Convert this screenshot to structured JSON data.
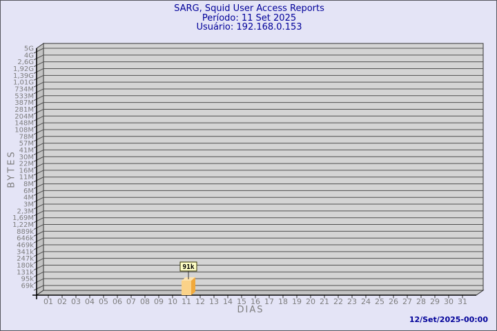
{
  "window": {
    "background": "#e4e4f6",
    "border_color": "#55555e"
  },
  "header": {
    "title": "SARG, Squid User Access Reports",
    "period": "Período: 11 Set 2025",
    "user": "Usuário: 192.168.0.153",
    "text_color": "#000099"
  },
  "footer": {
    "timestamp": "12/Set/2025-00:00",
    "text_color": "#000099"
  },
  "chart_data": {
    "type": "bar",
    "title": "SARG, Squid User Access Reports",
    "subtitle": [
      "Período: 11 Set 2025",
      "Usuário: 192.168.0.153"
    ],
    "xlabel": "DIAS",
    "ylabel": "BYTES",
    "y_scale": "log",
    "grid": true,
    "style": "3d",
    "x_tick_labels": [
      "01",
      "02",
      "03",
      "04",
      "05",
      "06",
      "07",
      "08",
      "09",
      "10",
      "11",
      "12",
      "13",
      "14",
      "15",
      "16",
      "17",
      "18",
      "19",
      "20",
      "21",
      "22",
      "23",
      "24",
      "25",
      "26",
      "27",
      "28",
      "29",
      "30",
      "31"
    ],
    "y_tick_labels": [
      "5G",
      "4G",
      "2,6G",
      "1,92G",
      "1,39G",
      "1,01G",
      "734M",
      "533M",
      "387M",
      "281M",
      "204M",
      "148M",
      "108M",
      "78M",
      "57M",
      "41M",
      "30M",
      "22M",
      "16M",
      "11M",
      "8M",
      "6M",
      "4M",
      "3M",
      "2,3M",
      "1,69M",
      "1,22M",
      "889k",
      "646k",
      "469k",
      "341k",
      "247k",
      "180k",
      "131k",
      "95k",
      "69k"
    ],
    "y_tick_values": [
      5000000000,
      4000000000,
      2600000000,
      1920000000,
      1390000000,
      1010000000,
      734000000,
      533000000,
      387000000,
      281000000,
      204000000,
      148000000,
      108000000,
      78000000,
      57000000,
      41000000,
      30000000,
      22000000,
      16000000,
      11000000,
      8000000,
      6000000,
      4000000,
      3000000,
      2300000,
      1690000,
      1220000,
      889000,
      646000,
      469000,
      341000,
      247000,
      180000,
      131000,
      95000,
      69000
    ],
    "bars": [
      {
        "x": "11",
        "value": 91000,
        "label": "91k"
      }
    ],
    "colors": {
      "plot_face": "#d4d4d4",
      "plot_wall": "#c3c3c3",
      "plot_floor": "#c3c3c3",
      "gridline": "#4f4f4f",
      "frame": "#333333",
      "axis": "#000000",
      "tick_label": "#7d7d7d",
      "bar_front": "#fad289",
      "bar_side": "#f1a93c",
      "bar_top": "#fde3ae",
      "annotation_bg": "#ffffc6",
      "annotation_border": "#333300",
      "annotation_text": "#000000"
    }
  }
}
